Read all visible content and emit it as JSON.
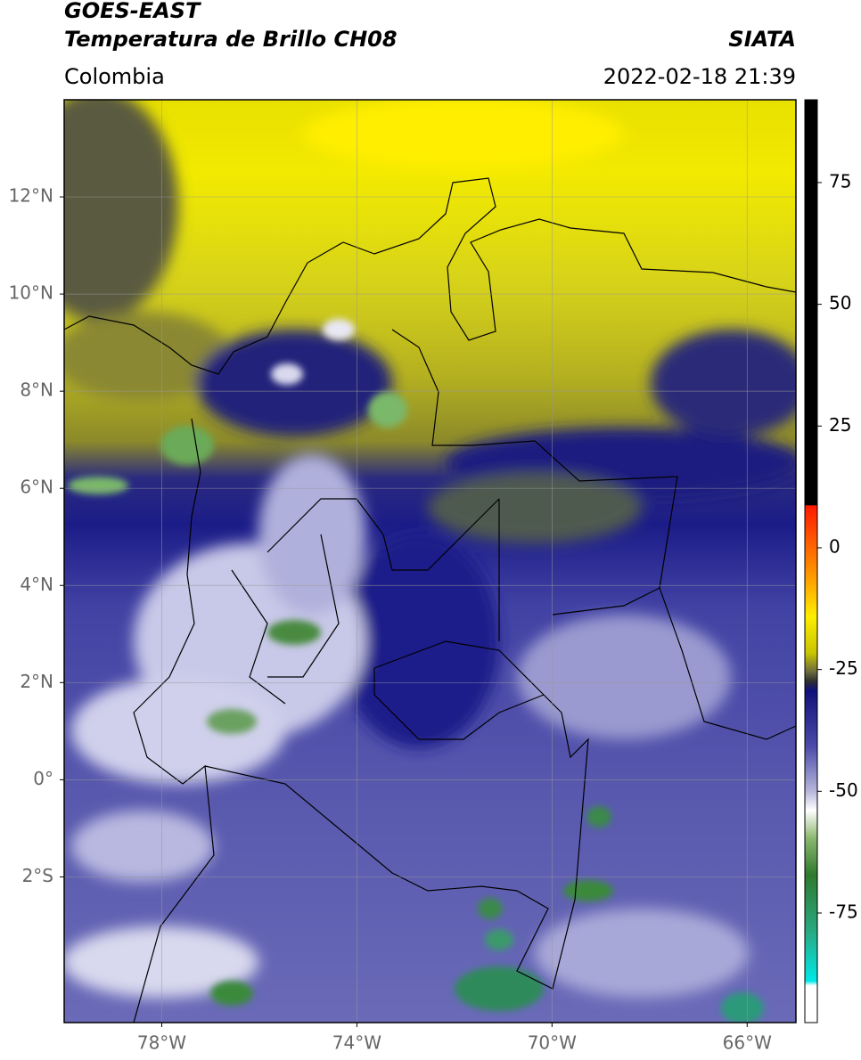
{
  "header": {
    "satellite": "GOES-EAST",
    "product": "Temperatura de Brillo CH08",
    "agency": "SIATA",
    "region": "Colombia",
    "datetime": "2022-02-18 21:39"
  },
  "map": {
    "xlim": [
      -80,
      -65
    ],
    "ylim": [
      -5,
      14
    ],
    "xticks": [
      {
        "value": -78,
        "label": "78°W"
      },
      {
        "value": -74,
        "label": "74°W"
      },
      {
        "value": -70,
        "label": "70°W"
      },
      {
        "value": -66,
        "label": "66°W"
      }
    ],
    "yticks": [
      {
        "value": 12,
        "label": "12°N"
      },
      {
        "value": 10,
        "label": "10°N"
      },
      {
        "value": 8,
        "label": "8°N"
      },
      {
        "value": 6,
        "label": "6°N"
      },
      {
        "value": 4,
        "label": "4°N"
      },
      {
        "value": 2,
        "label": "2°N"
      },
      {
        "value": 0,
        "label": "0°"
      },
      {
        "value": -2,
        "label": "2°S"
      }
    ],
    "grid": true
  },
  "colorbar": {
    "lim": [
      -97.5,
      92
    ],
    "ticks": [
      75,
      50,
      25,
      0,
      -25,
      -50,
      -75
    ]
  }
}
